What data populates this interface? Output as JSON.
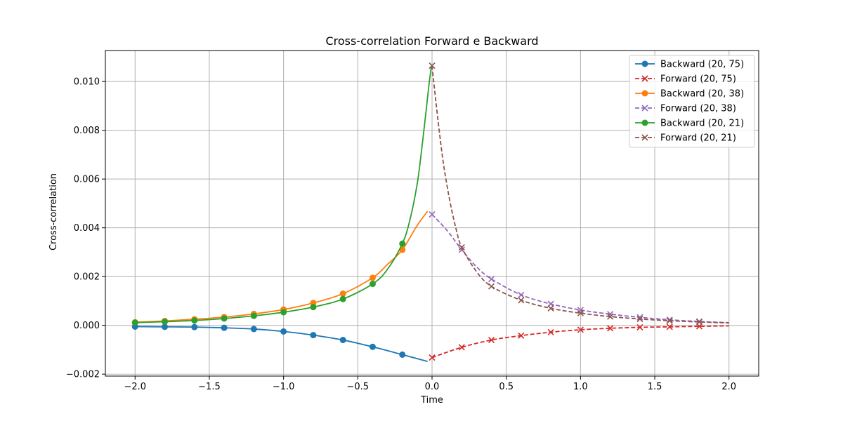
{
  "chart_data": {
    "type": "line",
    "title": "Cross-correlation Forward e Backward",
    "xlabel": "Time",
    "ylabel": "Cross-correlation",
    "xlim": [
      -2.2,
      2.2
    ],
    "ylim": [
      -0.00208,
      0.01127
    ],
    "xticks": [
      -2.0,
      -1.5,
      -1.0,
      -0.5,
      0.0,
      0.5,
      1.0,
      1.5,
      2.0
    ],
    "xtick_labels": [
      "−2.0",
      "−1.5",
      "−1.0",
      "−0.5",
      "0.0",
      "0.5",
      "1.0",
      "1.5",
      "2.0"
    ],
    "yticks": [
      -0.002,
      0.0,
      0.002,
      0.004,
      0.006,
      0.008,
      0.01
    ],
    "ytick_labels": [
      "−0.002",
      "0.000",
      "0.002",
      "0.004",
      "0.006",
      "0.008",
      "0.010"
    ],
    "grid": true,
    "legend_position": "top-right",
    "series": [
      {
        "name": "Backward (20, 75)",
        "color": "#1f77b4",
        "linestyle": "solid",
        "marker": "circle",
        "x": [
          -2.0,
          -1.8,
          -1.6,
          -1.4,
          -1.2,
          -1.0,
          -0.8,
          -0.6,
          -0.4,
          -0.2,
          -0.03
        ],
        "y": [
          -5e-05,
          -6e-05,
          -7e-05,
          -0.0001,
          -0.00015,
          -0.00025,
          -0.0004,
          -0.0006,
          -0.00088,
          -0.0012,
          -0.00148
        ],
        "markers_x": [
          -2.0,
          -1.8,
          -1.6,
          -1.4,
          -1.2,
          -1.0,
          -0.8,
          -0.6,
          -0.4,
          -0.2
        ],
        "markers_y": [
          -5e-05,
          -6e-05,
          -7e-05,
          -0.0001,
          -0.00015,
          -0.00025,
          -0.0004,
          -0.0006,
          -0.00088,
          -0.0012
        ]
      },
      {
        "name": "Forward (20, 75)",
        "color": "#d62728",
        "linestyle": "dashed",
        "marker": "x",
        "x": [
          0.0,
          0.2,
          0.4,
          0.6,
          0.8,
          1.0,
          1.2,
          1.4,
          1.6,
          1.8,
          2.0
        ],
        "y": [
          -0.00132,
          -0.0009,
          -0.0006,
          -0.00042,
          -0.00028,
          -0.00018,
          -0.00012,
          -8e-05,
          -6e-05,
          -4e-05,
          -2e-05
        ],
        "markers_x": [
          0.0,
          0.2,
          0.4,
          0.6,
          0.8,
          1.0,
          1.2,
          1.4,
          1.6,
          1.8
        ],
        "markers_y": [
          -0.00132,
          -0.0009,
          -0.0006,
          -0.00042,
          -0.00028,
          -0.00018,
          -0.00012,
          -8e-05,
          -6e-05,
          -4e-05
        ]
      },
      {
        "name": "Backward (20, 38)",
        "color": "#ff7f0e",
        "linestyle": "solid",
        "marker": "circle",
        "x": [
          -2.0,
          -1.8,
          -1.6,
          -1.4,
          -1.2,
          -1.0,
          -0.8,
          -0.6,
          -0.4,
          -0.3,
          -0.2,
          -0.1,
          -0.03
        ],
        "y": [
          0.00013,
          0.00018,
          0.00025,
          0.00034,
          0.00047,
          0.00065,
          0.00092,
          0.0013,
          0.00195,
          0.0025,
          0.0031,
          0.0041,
          0.00468
        ],
        "markers_x": [
          -2.0,
          -1.8,
          -1.6,
          -1.4,
          -1.2,
          -1.0,
          -0.8,
          -0.6,
          -0.4,
          -0.2
        ],
        "markers_y": [
          0.00013,
          0.00018,
          0.00025,
          0.00034,
          0.00047,
          0.00065,
          0.00092,
          0.0013,
          0.00195,
          0.0031
        ]
      },
      {
        "name": "Forward (20, 38)",
        "color": "#9467bd",
        "linestyle": "dashed",
        "marker": "x",
        "x": [
          0.0,
          0.1,
          0.2,
          0.3,
          0.4,
          0.6,
          0.8,
          1.0,
          1.2,
          1.4,
          1.6,
          1.8,
          2.0
        ],
        "y": [
          0.00455,
          0.0039,
          0.0031,
          0.0024,
          0.0019,
          0.00125,
          0.00088,
          0.00063,
          0.00046,
          0.00033,
          0.00023,
          0.00016,
          0.00011
        ],
        "markers_x": [
          0.0,
          0.2,
          0.4,
          0.6,
          0.8,
          1.0,
          1.2,
          1.4,
          1.6,
          1.8
        ],
        "markers_y": [
          0.00455,
          0.0031,
          0.0019,
          0.00125,
          0.00088,
          0.00063,
          0.00046,
          0.00033,
          0.00023,
          0.00016
        ]
      },
      {
        "name": "Backward (20, 21)",
        "color": "#2ca02c",
        "linestyle": "solid",
        "marker": "circle",
        "x": [
          -2.0,
          -1.8,
          -1.6,
          -1.4,
          -1.2,
          -1.0,
          -0.8,
          -0.6,
          -0.4,
          -0.3,
          -0.2,
          -0.15,
          -0.1,
          -0.07,
          -0.04,
          -0.02,
          -0.005
        ],
        "y": [
          0.00011,
          0.00015,
          0.0002,
          0.00028,
          0.00039,
          0.00054,
          0.00075,
          0.00108,
          0.0017,
          0.0023,
          0.00335,
          0.0043,
          0.0058,
          0.0072,
          0.0088,
          0.0099,
          0.0106
        ],
        "markers_x": [
          -2.0,
          -1.8,
          -1.6,
          -1.4,
          -1.2,
          -1.0,
          -0.8,
          -0.6,
          -0.4,
          -0.2
        ],
        "markers_y": [
          0.00011,
          0.00015,
          0.0002,
          0.00028,
          0.00039,
          0.00054,
          0.00075,
          0.00108,
          0.0017,
          0.00335
        ]
      },
      {
        "name": "Forward (20, 21)",
        "color": "#8c564b",
        "linestyle": "dashed",
        "marker": "x",
        "x": [
          0.0,
          0.02,
          0.05,
          0.08,
          0.12,
          0.16,
          0.2,
          0.3,
          0.4,
          0.6,
          0.8,
          1.0,
          1.2,
          1.4,
          1.6,
          1.8,
          2.0
        ],
        "y": [
          0.01065,
          0.0095,
          0.0079,
          0.0065,
          0.0051,
          0.004,
          0.0032,
          0.0022,
          0.0016,
          0.00103,
          0.0007,
          0.0005,
          0.00036,
          0.00026,
          0.00019,
          0.00014,
          0.0001
        ],
        "markers_x": [
          0.0,
          0.2,
          0.4,
          0.6,
          0.8,
          1.0,
          1.2,
          1.4,
          1.6,
          1.8
        ],
        "markers_y": [
          0.01065,
          0.0032,
          0.0016,
          0.00103,
          0.0007,
          0.0005,
          0.00036,
          0.00026,
          0.00019,
          0.00014
        ]
      }
    ]
  }
}
